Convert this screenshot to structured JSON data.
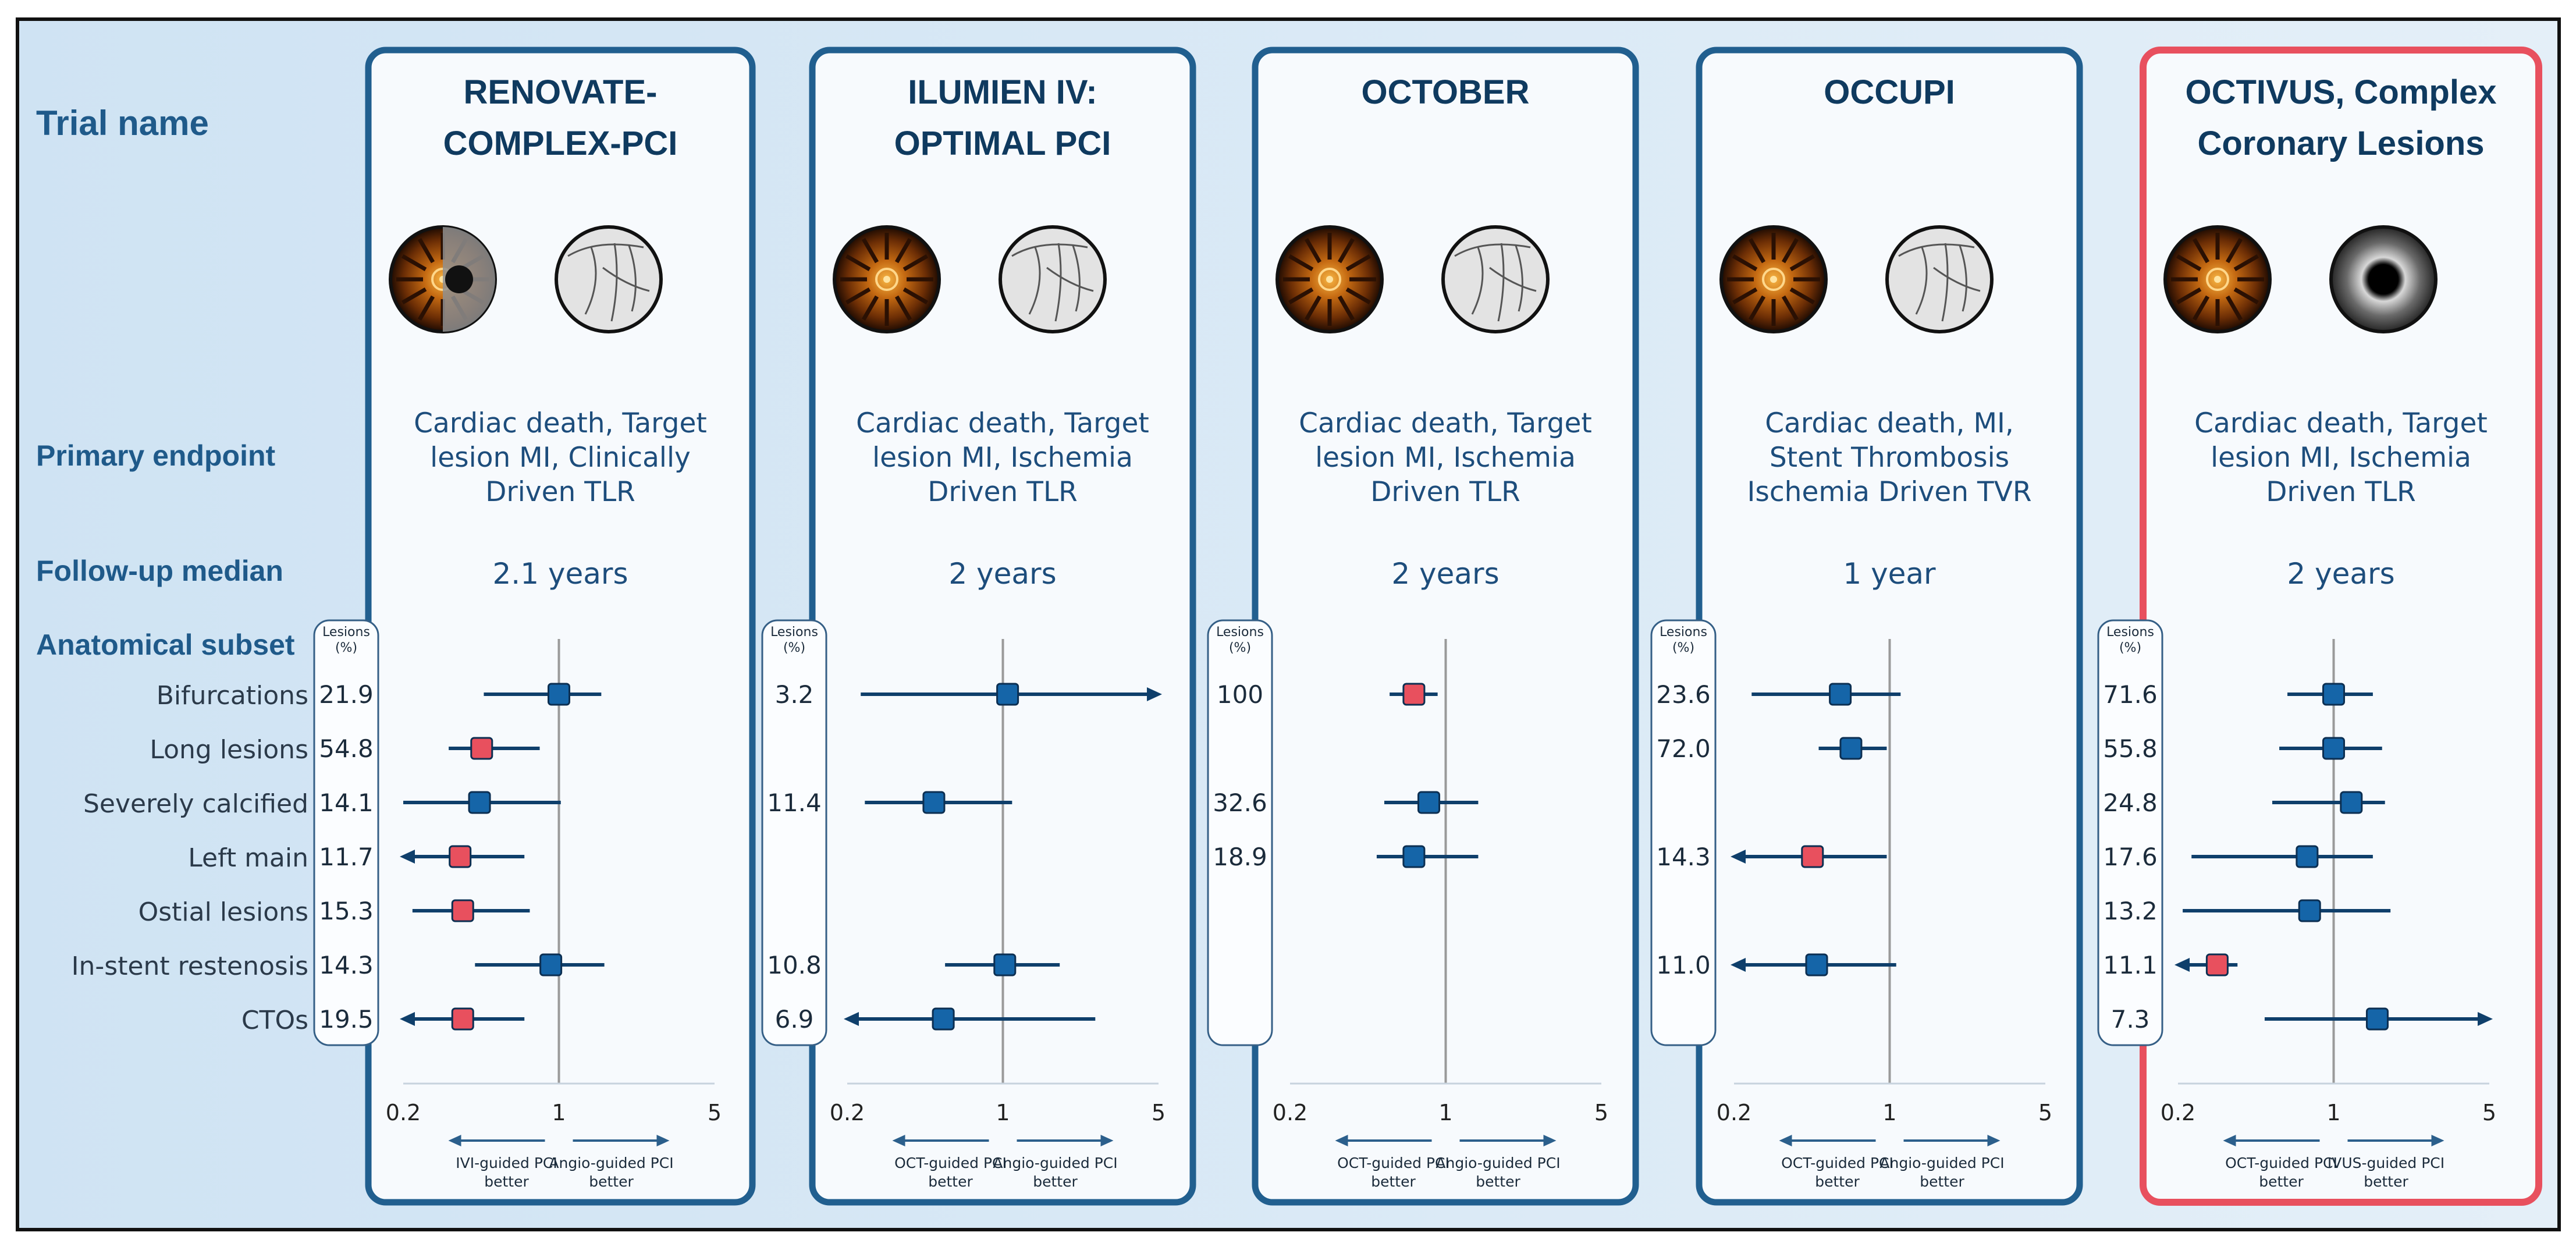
{
  "row_labels": {
    "trial_name": "Trial name",
    "primary_endpoint": "Primary endpoint",
    "follow_up": "Follow-up median",
    "anatomical_subset": "Anatomical subset"
  },
  "lesions_header": [
    "Lesions",
    "(%)"
  ],
  "subsets": [
    "Bifurcations",
    "Long lesions",
    "Severely calcified",
    "Left main",
    "Ostial lesions",
    "In-stent restenosis",
    "CTOs"
  ],
  "colors": {
    "marker_blue": "#1565a8",
    "marker_red": "#e8505e",
    "line": "#0f3f6b",
    "panel_border": "#215f8f",
    "highlight_border": "#e8505e"
  },
  "icons": {
    "oct_image": "oct-cross-section-icon",
    "ivus_image": "ivus-cross-section-icon",
    "angio_image": "angiogram-icon"
  },
  "chart_data": [
    {
      "type": "forest",
      "title": [
        "RENOVATE-",
        "COMPLEX-PCI"
      ],
      "endpoint": [
        "Cardiac death, Target",
        "lesion MI, Clinically",
        "Driven TLR"
      ],
      "follow_up": "2.1 years",
      "comparator_image": "angio",
      "highlight": false,
      "x_scale": "log",
      "x_ticks": [
        {
          "value": 0.2,
          "label": "0.2"
        },
        {
          "value": 1,
          "label": "1"
        },
        {
          "value": 5,
          "label": "5"
        }
      ],
      "xlim": [
        0.2,
        5
      ],
      "left_label": [
        "IVI-guided PCI",
        "better"
      ],
      "right_label": [
        "Angio-guided PCI",
        "better"
      ],
      "lesions": [
        "21.9",
        "54.8",
        "14.1",
        "11.7",
        "15.3",
        "14.3",
        "19.5"
      ],
      "points": [
        {
          "est": 1.0,
          "lo": 0.46,
          "hi": 1.55,
          "color": "blue",
          "arrow_lo": false,
          "arrow_hi": false
        },
        {
          "est": 0.45,
          "lo": 0.32,
          "hi": 0.82,
          "color": "red",
          "arrow_lo": false,
          "arrow_hi": false
        },
        {
          "est": 0.44,
          "lo": 0.2,
          "hi": 1.02,
          "color": "blue",
          "arrow_lo": false,
          "arrow_hi": false
        },
        {
          "est": 0.36,
          "lo": 0.2,
          "hi": 0.7,
          "color": "red",
          "arrow_lo": true,
          "arrow_hi": false
        },
        {
          "est": 0.37,
          "lo": 0.22,
          "hi": 0.74,
          "color": "red",
          "arrow_lo": false,
          "arrow_hi": false
        },
        {
          "est": 0.92,
          "lo": 0.42,
          "hi": 1.6,
          "color": "blue",
          "arrow_lo": false,
          "arrow_hi": false
        },
        {
          "est": 0.37,
          "lo": 0.2,
          "hi": 0.7,
          "color": "red",
          "arrow_lo": true,
          "arrow_hi": false
        }
      ]
    },
    {
      "type": "forest",
      "title": [
        "ILUMIEN IV:",
        "OPTIMAL PCI"
      ],
      "endpoint": [
        "Cardiac death, Target",
        "lesion MI, Ischemia",
        "Driven TLR"
      ],
      "follow_up": "2 years",
      "comparator_image": "angio",
      "highlight": false,
      "x_scale": "log",
      "x_ticks": [
        {
          "value": 0.2,
          "label": "0.2"
        },
        {
          "value": 1,
          "label": "1"
        },
        {
          "value": 5,
          "label": "5"
        }
      ],
      "xlim": [
        0.2,
        5
      ],
      "left_label": [
        "OCT-guided PCI",
        "better"
      ],
      "right_label": [
        "Angio-guided PCI",
        "better"
      ],
      "lesions": [
        "3.2",
        "",
        "11.4",
        "",
        "",
        "10.8",
        "6.9"
      ],
      "points": [
        {
          "est": 1.05,
          "lo": 0.23,
          "hi": 5,
          "color": "blue",
          "arrow_lo": false,
          "arrow_hi": true
        },
        null,
        {
          "est": 0.49,
          "lo": 0.24,
          "hi": 1.1,
          "color": "blue",
          "arrow_lo": false,
          "arrow_hi": false
        },
        null,
        null,
        {
          "est": 1.02,
          "lo": 0.55,
          "hi": 1.8,
          "color": "blue",
          "arrow_lo": false,
          "arrow_hi": false
        },
        {
          "est": 0.54,
          "lo": 0.2,
          "hi": 2.6,
          "color": "blue",
          "arrow_lo": true,
          "arrow_hi": false
        }
      ]
    },
    {
      "type": "forest",
      "title": [
        "OCTOBER"
      ],
      "endpoint": [
        "Cardiac death, Target",
        "lesion MI, Ischemia",
        "Driven TLR"
      ],
      "follow_up": "2 years",
      "comparator_image": "angio",
      "highlight": false,
      "x_scale": "log",
      "x_ticks": [
        {
          "value": 0.2,
          "label": "0.2"
        },
        {
          "value": 1,
          "label": "1"
        },
        {
          "value": 5,
          "label": "5"
        }
      ],
      "xlim": [
        0.2,
        5
      ],
      "left_label": [
        "OCT-guided PCI",
        "better"
      ],
      "right_label": [
        "Angio-guided PCI",
        "better"
      ],
      "lesions": [
        "100",
        "",
        "32.6",
        "18.9",
        "",
        "",
        ""
      ],
      "points": [
        {
          "est": 0.72,
          "lo": 0.56,
          "hi": 0.92,
          "color": "red",
          "arrow_lo": false,
          "arrow_hi": false
        },
        null,
        {
          "est": 0.84,
          "lo": 0.53,
          "hi": 1.4,
          "color": "blue",
          "arrow_lo": false,
          "arrow_hi": false
        },
        {
          "est": 0.72,
          "lo": 0.49,
          "hi": 1.4,
          "color": "blue",
          "arrow_lo": false,
          "arrow_hi": false
        },
        null,
        null,
        null
      ]
    },
    {
      "type": "forest",
      "title": [
        "OCCUPI"
      ],
      "endpoint": [
        "Cardiac death, MI,",
        "Stent Thrombosis",
        "Ischemia Driven TVR"
      ],
      "follow_up": "1 year",
      "comparator_image": "angio",
      "highlight": false,
      "x_scale": "log",
      "x_ticks": [
        {
          "value": 0.2,
          "label": "0.2"
        },
        {
          "value": 1,
          "label": "1"
        },
        {
          "value": 5,
          "label": "5"
        }
      ],
      "xlim": [
        0.2,
        5
      ],
      "left_label": [
        "OCT-guided PCI",
        "better"
      ],
      "right_label": [
        "Angio-guided PCI",
        "better"
      ],
      "lesions": [
        "23.6",
        "72.0",
        "",
        "14.3",
        "",
        "11.0",
        ""
      ],
      "points": [
        {
          "est": 0.6,
          "lo": 0.24,
          "hi": 1.12,
          "color": "blue",
          "arrow_lo": false,
          "arrow_hi": false
        },
        {
          "est": 0.67,
          "lo": 0.48,
          "hi": 0.97,
          "color": "blue",
          "arrow_lo": false,
          "arrow_hi": false
        },
        null,
        {
          "est": 0.45,
          "lo": 0.2,
          "hi": 0.97,
          "color": "red",
          "arrow_lo": true,
          "arrow_hi": false
        },
        null,
        {
          "est": 0.47,
          "lo": 0.2,
          "hi": 1.07,
          "color": "blue",
          "arrow_lo": true,
          "arrow_hi": false
        },
        null
      ]
    },
    {
      "type": "forest",
      "title": [
        "OCTIVUS, Complex",
        "Coronary Lesions"
      ],
      "endpoint": [
        "Cardiac death, Target",
        "lesion MI, Ischemia",
        "Driven TLR"
      ],
      "follow_up": "2 years",
      "comparator_image": "ivus",
      "highlight": true,
      "x_scale": "log",
      "x_ticks": [
        {
          "value": 0.2,
          "label": "0.2"
        },
        {
          "value": 1,
          "label": "1"
        },
        {
          "value": 5,
          "label": "5"
        }
      ],
      "xlim": [
        0.2,
        5
      ],
      "left_label": [
        "OCT-guided PCI",
        "better"
      ],
      "right_label": [
        "IVUS-guided PCI",
        "better"
      ],
      "lesions": [
        "71.6",
        "55.8",
        "24.8",
        "17.6",
        "13.2",
        "11.1",
        "7.3"
      ],
      "points": [
        {
          "est": 1.0,
          "lo": 0.62,
          "hi": 1.5,
          "color": "blue",
          "arrow_lo": false,
          "arrow_hi": false
        },
        {
          "est": 1.0,
          "lo": 0.57,
          "hi": 1.65,
          "color": "blue",
          "arrow_lo": false,
          "arrow_hi": false
        },
        {
          "est": 1.2,
          "lo": 0.53,
          "hi": 1.7,
          "color": "blue",
          "arrow_lo": false,
          "arrow_hi": false
        },
        {
          "est": 0.76,
          "lo": 0.23,
          "hi": 1.5,
          "color": "blue",
          "arrow_lo": false,
          "arrow_hi": false
        },
        {
          "est": 0.78,
          "lo": 0.21,
          "hi": 1.8,
          "color": "blue",
          "arrow_lo": false,
          "arrow_hi": false
        },
        {
          "est": 0.3,
          "lo": 0.2,
          "hi": 0.37,
          "color": "red",
          "arrow_lo": true,
          "arrow_hi": false
        },
        {
          "est": 1.57,
          "lo": 0.49,
          "hi": 5,
          "color": "blue",
          "arrow_lo": false,
          "arrow_hi": true
        }
      ]
    }
  ]
}
